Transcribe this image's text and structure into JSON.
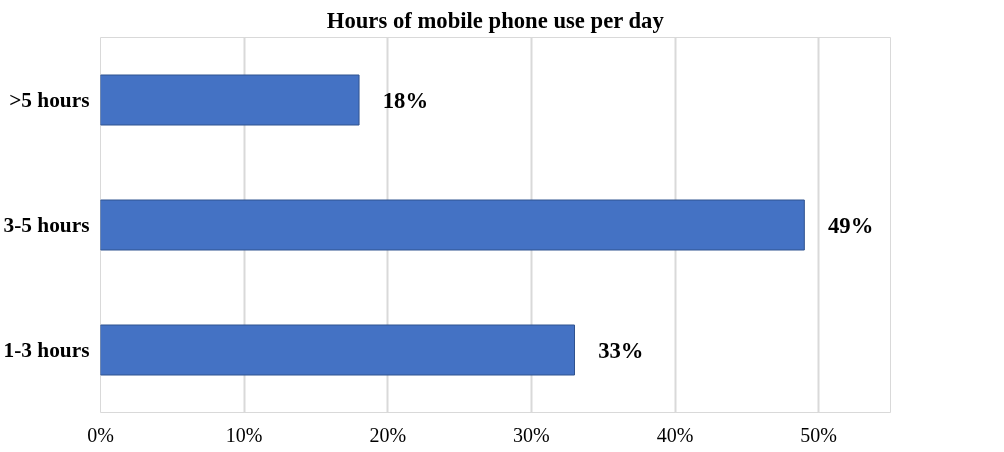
{
  "chart_data": {
    "type": "bar",
    "orientation": "horizontal",
    "title": "Hours of mobile phone use per day",
    "categories": [
      ">5 hours",
      "3-5 hours",
      "1-3 hours"
    ],
    "values": [
      18,
      49,
      33
    ],
    "color": "#4472c4",
    "value_labels": [
      "18%",
      "49%",
      "33%"
    ],
    "xlim": [
      0,
      55
    ],
    "xticks": [
      {
        "value": 0,
        "label": "0%"
      },
      {
        "value": 10,
        "label": "10%"
      },
      {
        "value": 20,
        "label": "20%"
      },
      {
        "value": 30,
        "label": "30%"
      },
      {
        "value": 40,
        "label": "40%"
      },
      {
        "value": 50,
        "label": "50%"
      }
    ],
    "grid": "x"
  }
}
